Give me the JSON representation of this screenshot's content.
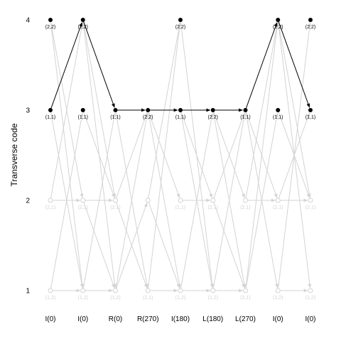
{
  "chart_data": {
    "type": "scatter",
    "title": "",
    "xlabel": "",
    "ylabel": "Transverse code",
    "x": [
      "I(0)",
      "I(0)",
      "R(0)",
      "R(270)",
      "I(180)",
      "L(180)",
      "L(270)",
      "I(0)",
      "I(0)"
    ],
    "y_ticks": [
      1,
      2,
      3,
      4
    ],
    "ylim": [
      1,
      4
    ],
    "grid": false,
    "node_labels": {
      "4": [
        "(2,2)",
        "(2,2)",
        "",
        "",
        "(2,2)",
        "",
        "",
        "(2,2)",
        "(2,2)"
      ],
      "3": [
        "(1,1)",
        "(1,1)",
        "(1,1)",
        "(2,2)",
        "(1,1)",
        "(2,2)",
        "(1,1)",
        "(1,1)",
        "(1,1)"
      ],
      "2": [
        "(2,1)",
        "(2,1)",
        "(2,1)",
        "",
        "(1,1)",
        "(2,1)",
        "(2,1)",
        "(2,1)",
        "(2,1)"
      ],
      "1": [
        "(1,2)",
        "(1,2)",
        "(1,2)",
        "(2,1)",
        "(1,2)",
        "(1,2)",
        "(2,1)",
        "(1,2)",
        "(1,2)"
      ]
    },
    "active_nodes": [
      {
        "x": 0,
        "y": 4
      },
      {
        "x": 1,
        "y": 4
      },
      {
        "x": 4,
        "y": 4
      },
      {
        "x": 7,
        "y": 4
      },
      {
        "x": 8,
        "y": 4
      },
      {
        "x": 0,
        "y": 3
      },
      {
        "x": 1,
        "y": 3
      },
      {
        "x": 2,
        "y": 3
      },
      {
        "x": 3,
        "y": 3
      },
      {
        "x": 4,
        "y": 3
      },
      {
        "x": 5,
        "y": 3
      },
      {
        "x": 6,
        "y": 3
      },
      {
        "x": 7,
        "y": 3
      },
      {
        "x": 8,
        "y": 3
      }
    ],
    "inactive_nodes": [
      {
        "x": 0,
        "y": 2
      },
      {
        "x": 1,
        "y": 2
      },
      {
        "x": 2,
        "y": 2
      },
      {
        "x": 3,
        "y": 2
      },
      {
        "x": 4,
        "y": 2
      },
      {
        "x": 5,
        "y": 2
      },
      {
        "x": 6,
        "y": 2
      },
      {
        "x": 7,
        "y": 2
      },
      {
        "x": 8,
        "y": 2
      },
      {
        "x": 0,
        "y": 1
      },
      {
        "x": 1,
        "y": 1
      },
      {
        "x": 2,
        "y": 1
      },
      {
        "x": 3,
        "y": 1
      },
      {
        "x": 4,
        "y": 1
      },
      {
        "x": 5,
        "y": 1
      },
      {
        "x": 6,
        "y": 1
      },
      {
        "x": 7,
        "y": 1
      },
      {
        "x": 8,
        "y": 1
      }
    ],
    "path_edges": [
      {
        "from": [
          0,
          3
        ],
        "to": [
          1,
          4
        ]
      },
      {
        "from": [
          1,
          4
        ],
        "to": [
          2,
          3
        ]
      },
      {
        "from": [
          2,
          3
        ],
        "to": [
          3,
          3
        ]
      },
      {
        "from": [
          3,
          3
        ],
        "to": [
          4,
          3
        ]
      },
      {
        "from": [
          4,
          3
        ],
        "to": [
          5,
          3
        ]
      },
      {
        "from": [
          5,
          3
        ],
        "to": [
          6,
          3
        ]
      },
      {
        "from": [
          6,
          3
        ],
        "to": [
          7,
          4
        ]
      },
      {
        "from": [
          7,
          4
        ],
        "to": [
          8,
          3
        ]
      }
    ],
    "background_edges": [
      {
        "from": [
          0,
          4
        ],
        "to": [
          1,
          2
        ]
      },
      {
        "from": [
          0,
          4
        ],
        "to": [
          1,
          1
        ]
      },
      {
        "from": [
          0,
          3
        ],
        "to": [
          1,
          1
        ]
      },
      {
        "from": [
          0,
          2
        ],
        "to": [
          1,
          2
        ]
      },
      {
        "from": [
          0,
          2
        ],
        "to": [
          1,
          4
        ]
      },
      {
        "from": [
          0,
          1
        ],
        "to": [
          1,
          1
        ]
      },
      {
        "from": [
          0,
          1
        ],
        "to": [
          1,
          3
        ]
      },
      {
        "from": [
          1,
          4
        ],
        "to": [
          2,
          2
        ]
      },
      {
        "from": [
          1,
          4
        ],
        "to": [
          2,
          1
        ]
      },
      {
        "from": [
          1,
          3
        ],
        "to": [
          2,
          2
        ]
      },
      {
        "from": [
          1,
          2
        ],
        "to": [
          2,
          2
        ]
      },
      {
        "from": [
          1,
          2
        ],
        "to": [
          2,
          1
        ]
      },
      {
        "from": [
          1,
          1
        ],
        "to": [
          2,
          1
        ]
      },
      {
        "from": [
          1,
          1
        ],
        "to": [
          2,
          3
        ]
      },
      {
        "from": [
          2,
          3
        ],
        "to": [
          3,
          1
        ]
      },
      {
        "from": [
          2,
          2
        ],
        "to": [
          3,
          1
        ]
      },
      {
        "from": [
          2,
          1
        ],
        "to": [
          3,
          3
        ]
      },
      {
        "from": [
          2,
          1
        ],
        "to": [
          3,
          2
        ]
      },
      {
        "from": [
          2,
          2
        ],
        "to": [
          3,
          3
        ]
      },
      {
        "from": [
          3,
          3
        ],
        "to": [
          4,
          1
        ]
      },
      {
        "from": [
          3,
          2
        ],
        "to": [
          4,
          4
        ]
      },
      {
        "from": [
          3,
          1
        ],
        "to": [
          4,
          4
        ]
      },
      {
        "from": [
          3,
          1
        ],
        "to": [
          4,
          1
        ]
      },
      {
        "from": [
          3,
          2
        ],
        "to": [
          4,
          1
        ]
      },
      {
        "from": [
          3,
          3
        ],
        "to": [
          4,
          2
        ]
      },
      {
        "from": [
          4,
          4
        ],
        "to": [
          5,
          1
        ]
      },
      {
        "from": [
          4,
          3
        ],
        "to": [
          5,
          1
        ]
      },
      {
        "from": [
          4,
          2
        ],
        "to": [
          5,
          2
        ]
      },
      {
        "from": [
          4,
          1
        ],
        "to": [
          5,
          1
        ]
      },
      {
        "from": [
          4,
          1
        ],
        "to": [
          5,
          3
        ]
      },
      {
        "from": [
          4,
          3
        ],
        "to": [
          5,
          2
        ]
      },
      {
        "from": [
          5,
          3
        ],
        "to": [
          6,
          2
        ]
      },
      {
        "from": [
          5,
          2
        ],
        "to": [
          6,
          1
        ]
      },
      {
        "from": [
          5,
          1
        ],
        "to": [
          6,
          1
        ]
      },
      {
        "from": [
          5,
          1
        ],
        "to": [
          6,
          3
        ]
      },
      {
        "from": [
          5,
          3
        ],
        "to": [
          6,
          1
        ]
      },
      {
        "from": [
          5,
          2
        ],
        "to": [
          6,
          3
        ]
      },
      {
        "from": [
          6,
          3
        ],
        "to": [
          7,
          1
        ]
      },
      {
        "from": [
          6,
          2
        ],
        "to": [
          7,
          2
        ]
      },
      {
        "from": [
          6,
          2
        ],
        "to": [
          7,
          4
        ]
      },
      {
        "from": [
          6,
          1
        ],
        "to": [
          7,
          3
        ]
      },
      {
        "from": [
          6,
          1
        ],
        "to": [
          7,
          4
        ]
      },
      {
        "from": [
          6,
          3
        ],
        "to": [
          7,
          2
        ]
      },
      {
        "from": [
          7,
          4
        ],
        "to": [
          8,
          2
        ]
      },
      {
        "from": [
          7,
          3
        ],
        "to": [
          8,
          2
        ]
      },
      {
        "from": [
          7,
          2
        ],
        "to": [
          8,
          2
        ]
      },
      {
        "from": [
          7,
          1
        ],
        "to": [
          8,
          1
        ]
      },
      {
        "from": [
          7,
          1
        ],
        "to": [
          8,
          4
        ]
      },
      {
        "from": [
          7,
          2
        ],
        "to": [
          8,
          3
        ]
      },
      {
        "from": [
          7,
          4
        ],
        "to": [
          8,
          1
        ]
      }
    ],
    "colors": {
      "active": "#000000",
      "inactive": "#d3d3d3",
      "path_edge": "#000000",
      "background_edge": "#d3d3d3",
      "inactive_label": "#d3d3d3"
    }
  }
}
